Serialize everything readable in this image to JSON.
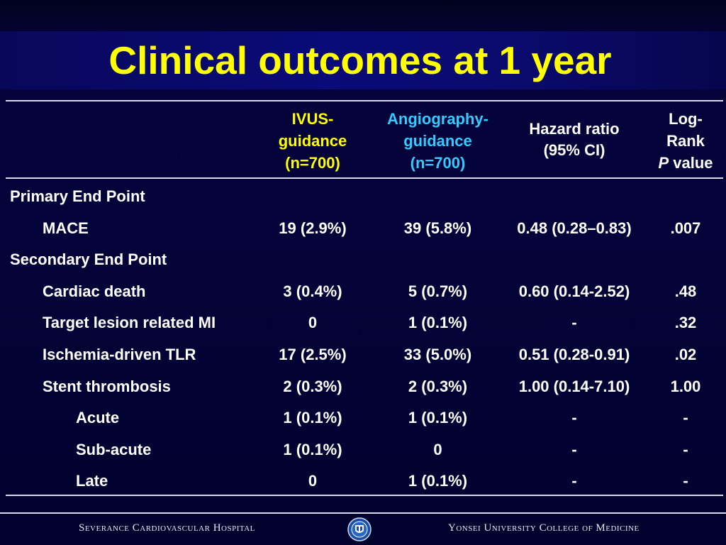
{
  "title": "Clinical outcomes at 1 year",
  "headers": {
    "ivus": [
      "IVUS-",
      "guidance",
      "(n=700)"
    ],
    "angio": [
      "Angiography-",
      "guidance",
      "(n=700)"
    ],
    "hr": [
      "Hazard ratio",
      "(95% CI)"
    ],
    "p": [
      "Log-",
      "Rank"
    ],
    "p_italic": "P",
    "p_suffix": " value"
  },
  "rows": [
    {
      "label": "Primary End Point",
      "level": 0,
      "ivus": "",
      "angio": "",
      "hr": "",
      "p": ""
    },
    {
      "label": "MACE",
      "level": 1,
      "ivus": "19 (2.9%)",
      "angio": "39 (5.8%)",
      "hr": "0.48 (0.28–0.83)",
      "p": ".007"
    },
    {
      "label": "Secondary End Point",
      "level": 0,
      "ivus": "",
      "angio": "",
      "hr": "",
      "p": ""
    },
    {
      "label": "Cardiac death",
      "level": 1,
      "ivus": "3 (0.4%)",
      "angio": "5 (0.7%)",
      "hr": "0.60 (0.14-2.52)",
      "p": ".48"
    },
    {
      "label": "Target lesion related MI",
      "level": 1,
      "ivus": "0",
      "angio": "1 (0.1%)",
      "hr": "-",
      "p": ".32"
    },
    {
      "label": "Ischemia-driven TLR",
      "level": 1,
      "ivus": "17 (2.5%)",
      "angio": "33 (5.0%)",
      "hr": "0.51 (0.28-0.91)",
      "p": ".02"
    },
    {
      "label": "Stent thrombosis",
      "level": 1,
      "ivus": "2 (0.3%)",
      "angio": "2 (0.3%)",
      "hr": "1.00 (0.14-7.10)",
      "p": "1.00"
    },
    {
      "label": "Acute",
      "level": 2,
      "ivus": "1 (0.1%)",
      "angio": "1 (0.1%)",
      "hr": "-",
      "p": "-"
    },
    {
      "label": "Sub-acute",
      "level": 2,
      "ivus": "1 (0.1%)",
      "angio": "0",
      "hr": "-",
      "p": "-"
    },
    {
      "label": "Late",
      "level": 2,
      "ivus": "0",
      "angio": "1 (0.1%)",
      "hr": "-",
      "p": "-"
    }
  ],
  "footer": {
    "left": "Severance Cardiovascular Hospital",
    "right": "Yonsei University College of Medicine"
  },
  "colors": {
    "title": "#ffff00",
    "ivus_header": "#ffff00",
    "angio_header": "#33ccff",
    "background": "#03032e"
  },
  "icons": {
    "emblem": "university-shield-emblem-icon"
  }
}
